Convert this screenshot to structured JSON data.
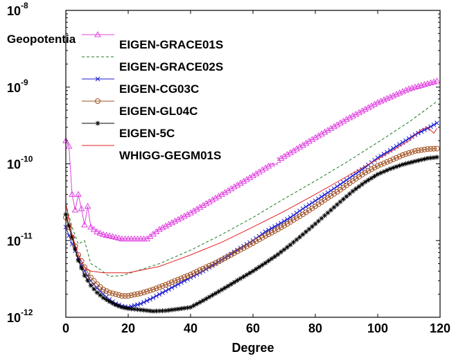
{
  "chart_data": {
    "type": "line",
    "title": "Geopotential error",
    "xlabel": "Degree",
    "ylabel": "",
    "xlim": [
      0,
      120
    ],
    "ylim": [
      1e-12,
      1e-08
    ],
    "yscale": "log",
    "x_ticks": [
      "0",
      "20",
      "40",
      "60",
      "80",
      "100",
      "120"
    ],
    "y_ticks": [
      {
        "base": "10",
        "exp": "-12"
      },
      {
        "base": "10",
        "exp": "-11"
      },
      {
        "base": "10",
        "exp": "-10"
      },
      {
        "base": "10",
        "exp": "-9"
      },
      {
        "base": "10",
        "exp": "-8"
      }
    ],
    "grid": false,
    "legend_position": "top-left",
    "series": [
      {
        "name": "EIGEN-GRACE01S",
        "color": "#e040e0",
        "marker": "triangle",
        "dash": "",
        "points": [
          [
            0,
            2e-10
          ],
          [
            1,
            1.7e-10
          ],
          [
            2,
            4e-11
          ],
          [
            3,
            2.5e-11
          ],
          [
            4,
            4e-11
          ],
          [
            5,
            2.6e-11
          ],
          [
            6,
            1.6e-11
          ],
          [
            7,
            2.8e-11
          ],
          [
            8,
            1.5e-11
          ],
          [
            10,
            1.3e-11
          ],
          [
            12,
            1.2e-11
          ],
          [
            14,
            1.15e-11
          ],
          [
            16,
            1.1e-11
          ],
          [
            18,
            1.05e-11
          ],
          [
            20,
            1.05e-11
          ],
          [
            22,
            1.05e-11
          ],
          [
            24,
            1.05e-11
          ],
          [
            26,
            1.05e-11
          ],
          [
            30,
            1.4e-11
          ],
          [
            40,
            2.3e-11
          ],
          [
            50,
            4e-11
          ],
          [
            60,
            7e-11
          ],
          [
            70,
            1.25e-10
          ],
          [
            80,
            2.2e-10
          ],
          [
            90,
            3.8e-10
          ],
          [
            100,
            6.3e-10
          ],
          [
            110,
            9.5e-10
          ],
          [
            119,
            1.2e-09
          ]
        ]
      },
      {
        "name": "EIGEN-GRACE02S",
        "color": "#1a7a1a",
        "marker": "none",
        "dash": "4,3",
        "points": [
          [
            0,
            3e-11
          ],
          [
            2,
            1.5e-11
          ],
          [
            4,
            9e-12
          ],
          [
            6,
            1e-11
          ],
          [
            8,
            5e-12
          ],
          [
            10,
            4.5e-12
          ],
          [
            14,
            3.4e-12
          ],
          [
            18,
            3.5e-12
          ],
          [
            20,
            3.7e-12
          ],
          [
            30,
            5e-12
          ],
          [
            40,
            7.5e-12
          ],
          [
            50,
            1.2e-11
          ],
          [
            60,
            2e-11
          ],
          [
            70,
            3.5e-11
          ],
          [
            80,
            6e-11
          ],
          [
            90,
            1.05e-10
          ],
          [
            100,
            1.9e-10
          ],
          [
            110,
            3.5e-10
          ],
          [
            119,
            6.5e-10
          ]
        ]
      },
      {
        "name": "EIGEN-CG03C",
        "color": "#1a1ad0",
        "marker": "x",
        "dash": "",
        "points": [
          [
            0,
            1.5e-11
          ],
          [
            2,
            9e-12
          ],
          [
            4,
            6e-12
          ],
          [
            6,
            4e-12
          ],
          [
            8,
            3e-12
          ],
          [
            10,
            2.4e-12
          ],
          [
            12,
            2e-12
          ],
          [
            14,
            1.7e-12
          ],
          [
            16,
            1.5e-12
          ],
          [
            18,
            1.4e-12
          ],
          [
            20,
            1.35e-12
          ],
          [
            24,
            1.5e-12
          ],
          [
            28,
            1.8e-12
          ],
          [
            32,
            2.2e-12
          ],
          [
            36,
            2.7e-12
          ],
          [
            40,
            3.3e-12
          ],
          [
            44,
            4e-12
          ],
          [
            48,
            5e-12
          ],
          [
            52,
            6.3e-12
          ],
          [
            56,
            8e-12
          ],
          [
            60,
            1e-11
          ],
          [
            64,
            1.3e-11
          ],
          [
            68,
            1.6e-11
          ],
          [
            72,
            2e-11
          ],
          [
            76,
            2.6e-11
          ],
          [
            80,
            3.3e-11
          ],
          [
            84,
            4.2e-11
          ],
          [
            88,
            5.4e-11
          ],
          [
            92,
            7e-11
          ],
          [
            96,
            9e-11
          ],
          [
            100,
            1.2e-10
          ],
          [
            104,
            1.5e-10
          ],
          [
            108,
            1.9e-10
          ],
          [
            112,
            2.4e-10
          ],
          [
            116,
            2.9e-10
          ],
          [
            119,
            3.4e-10
          ]
        ]
      },
      {
        "name": "EIGEN-GL04C",
        "color": "#a05020",
        "marker": "circle",
        "dash": "",
        "points": [
          [
            0,
            2e-11
          ],
          [
            2,
            1.1e-11
          ],
          [
            4,
            6.5e-12
          ],
          [
            6,
            4.5e-12
          ],
          [
            8,
            3.3e-12
          ],
          [
            10,
            2.7e-12
          ],
          [
            12,
            2.3e-12
          ],
          [
            14,
            2.1e-12
          ],
          [
            16,
            2e-12
          ],
          [
            18,
            1.9e-12
          ],
          [
            20,
            1.9e-12
          ],
          [
            24,
            2.05e-12
          ],
          [
            28,
            2.3e-12
          ],
          [
            32,
            2.65e-12
          ],
          [
            36,
            3.1e-12
          ],
          [
            40,
            3.6e-12
          ],
          [
            44,
            4.3e-12
          ],
          [
            48,
            5.1e-12
          ],
          [
            52,
            6.2e-12
          ],
          [
            56,
            7.6e-12
          ],
          [
            60,
            9.3e-12
          ],
          [
            64,
            1.15e-11
          ],
          [
            68,
            1.4e-11
          ],
          [
            72,
            1.75e-11
          ],
          [
            76,
            2.2e-11
          ],
          [
            80,
            2.8e-11
          ],
          [
            84,
            3.6e-11
          ],
          [
            88,
            4.6e-11
          ],
          [
            92,
            6e-11
          ],
          [
            96,
            7.7e-11
          ],
          [
            100,
            9.4e-11
          ],
          [
            104,
            1.1e-10
          ],
          [
            108,
            1.3e-10
          ],
          [
            112,
            1.47e-10
          ],
          [
            116,
            1.56e-10
          ],
          [
            119,
            1.58e-10
          ]
        ]
      },
      {
        "name": "EIGEN-5C",
        "color": "#000000",
        "marker": "star",
        "dash": "",
        "points": [
          [
            0,
            2.2e-11
          ],
          [
            2,
            1.1e-11
          ],
          [
            4,
            5.5e-12
          ],
          [
            6,
            3.5e-12
          ],
          [
            8,
            2.6e-12
          ],
          [
            10,
            2.1e-12
          ],
          [
            12,
            1.8e-12
          ],
          [
            14,
            1.6e-12
          ],
          [
            16,
            1.45e-12
          ],
          [
            18,
            1.35e-12
          ],
          [
            20,
            1.3e-12
          ],
          [
            24,
            1.25e-12
          ],
          [
            28,
            1.2e-12
          ],
          [
            32,
            1.22e-12
          ],
          [
            36,
            1.28e-12
          ],
          [
            40,
            1.35e-12
          ],
          [
            44,
            1.65e-12
          ],
          [
            48,
            2.05e-12
          ],
          [
            52,
            2.55e-12
          ],
          [
            56,
            3.2e-12
          ],
          [
            60,
            4e-12
          ],
          [
            64,
            5.1e-12
          ],
          [
            68,
            6.6e-12
          ],
          [
            72,
            8.8e-12
          ],
          [
            76,
            1.2e-11
          ],
          [
            80,
            1.65e-11
          ],
          [
            84,
            2.3e-11
          ],
          [
            88,
            3.2e-11
          ],
          [
            92,
            4.4e-11
          ],
          [
            96,
            5.8e-11
          ],
          [
            100,
            7.3e-11
          ],
          [
            104,
            8.6e-11
          ],
          [
            108,
            9.8e-11
          ],
          [
            112,
            1.08e-10
          ],
          [
            116,
            1.18e-10
          ],
          [
            119,
            1.22e-10
          ]
        ]
      },
      {
        "name": "WHIGG-GEGM01S",
        "color": "#e02020",
        "marker": "none",
        "dash": "",
        "points": [
          [
            0,
            3e-11
          ],
          [
            2,
            1.2e-11
          ],
          [
            4,
            6.5e-12
          ],
          [
            6,
            4.5e-12
          ],
          [
            8,
            4e-12
          ],
          [
            10,
            3.9e-12
          ],
          [
            12,
            3.8e-12
          ],
          [
            16,
            3.8e-12
          ],
          [
            20,
            3.8e-12
          ],
          [
            24,
            4.1e-12
          ],
          [
            30,
            4.6e-12
          ],
          [
            40,
            6.5e-12
          ],
          [
            50,
            9.5e-12
          ],
          [
            60,
            1.5e-11
          ],
          [
            70,
            2.4e-11
          ],
          [
            80,
            4e-11
          ],
          [
            90,
            6.8e-11
          ],
          [
            100,
            1.15e-10
          ],
          [
            110,
            2e-10
          ],
          [
            114,
            2.8e-10
          ],
          [
            116,
            3e-10
          ],
          [
            118,
            2.5e-10
          ],
          [
            119,
            2.9e-10
          ]
        ]
      }
    ]
  }
}
